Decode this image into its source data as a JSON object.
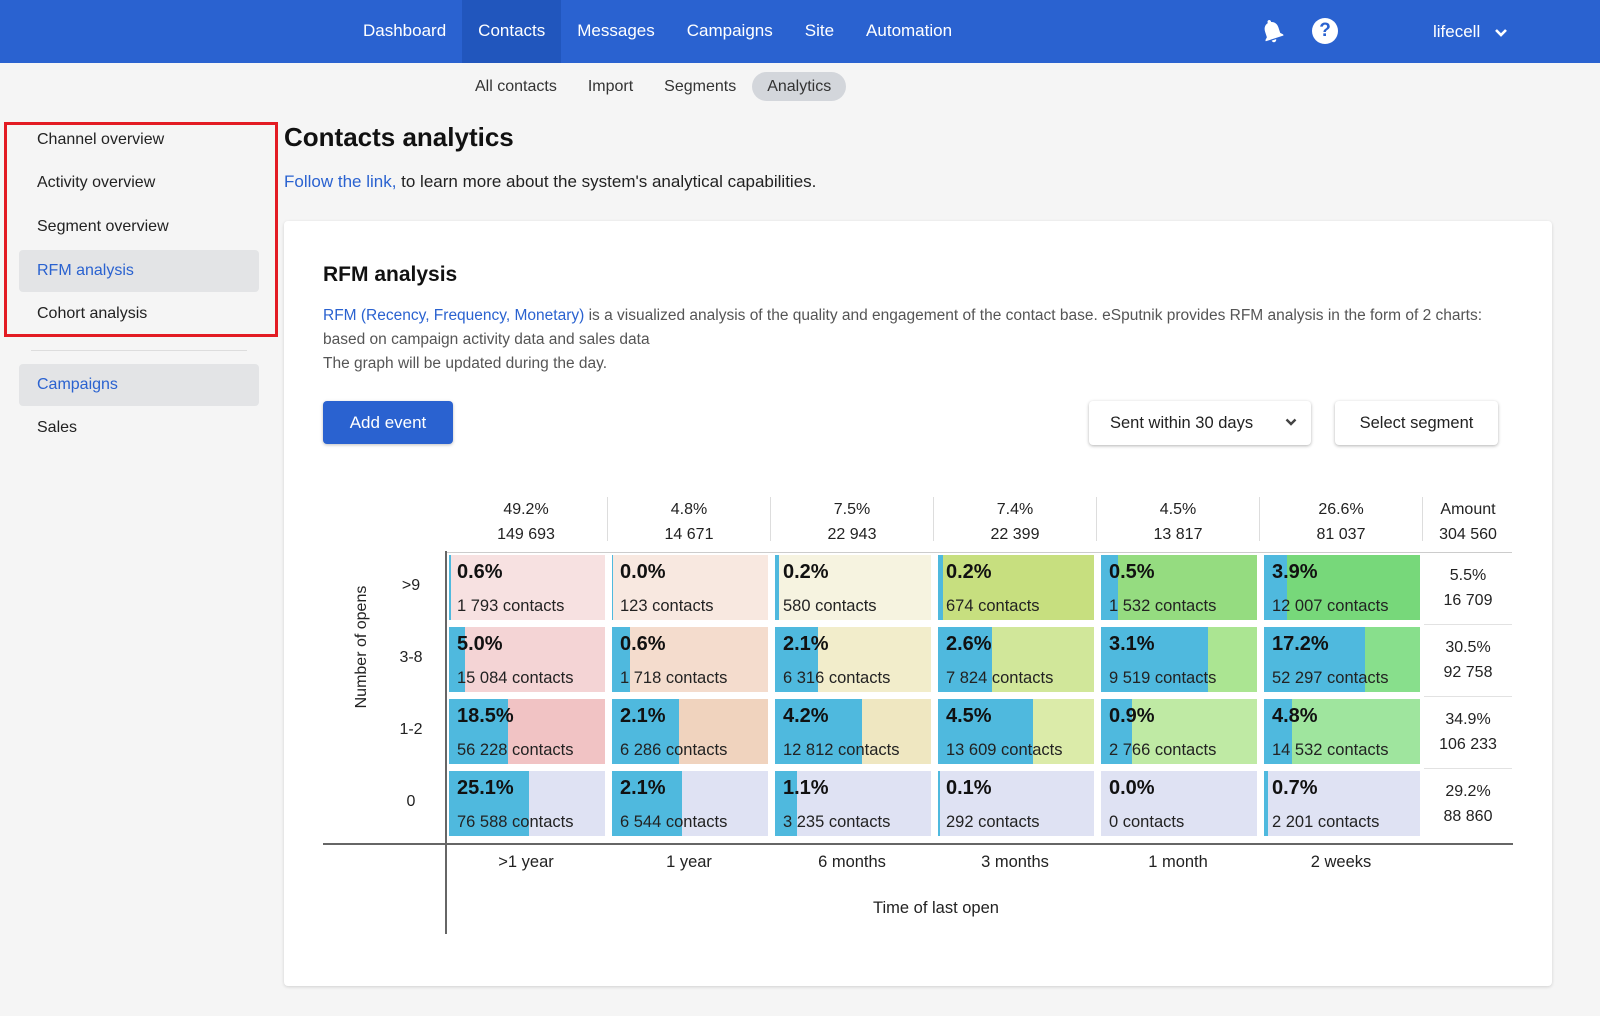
{
  "topnav": {
    "items": [
      {
        "label": "Dashboard",
        "active": false
      },
      {
        "label": "Contacts",
        "active": true
      },
      {
        "label": "Messages",
        "active": false
      },
      {
        "label": "Campaigns",
        "active": false
      },
      {
        "label": "Site",
        "active": false
      },
      {
        "label": "Automation",
        "active": false
      }
    ],
    "account": "lifecell",
    "help_symbol": "?",
    "icons": [
      "bell-icon",
      "help-icon",
      "chevron-down-icon"
    ]
  },
  "subtabs": [
    {
      "label": "All contacts",
      "active": false
    },
    {
      "label": "Import",
      "active": false
    },
    {
      "label": "Segments",
      "active": false
    },
    {
      "label": "Analytics",
      "active": true
    }
  ],
  "sidebar": {
    "analytics_items": [
      {
        "label": "Channel overview",
        "active": false
      },
      {
        "label": "Activity overview",
        "active": false
      },
      {
        "label": "Segment overview",
        "active": false
      },
      {
        "label": "RFM analysis",
        "active": true
      },
      {
        "label": "Cohort analysis",
        "active": false
      }
    ],
    "data_items": [
      {
        "label": "Campaigns",
        "active": true
      },
      {
        "label": "Sales",
        "active": false
      }
    ]
  },
  "header": {
    "title": "Contacts analytics",
    "link_text": "Follow the link,",
    "intro_rest": " to learn more about the system's analytical capabilities."
  },
  "rfm": {
    "title": "RFM analysis",
    "desc_link": "RFM (Recency, Frequency, Monetary)",
    "desc_rest": " is a visualized analysis of the quality and engagement of the contact base. eSputnik provides RFM analysis in the form of 2 charts: based on campaign activity data and sales data",
    "desc_note": "The graph will be updated during the day.",
    "add_event_label": "Add event",
    "filter_value": "Sent within 30 days",
    "select_segment_label": "Select segment"
  },
  "chart_data": {
    "type": "heatmap",
    "xlabel": "Time of last open",
    "ylabel": "Number of opens",
    "columns": [
      ">1 year",
      "1 year",
      "6 months",
      "3 months",
      "1 month",
      "2 weeks"
    ],
    "column_totals": [
      {
        "pct": "49.2%",
        "count": "149 693"
      },
      {
        "pct": "4.8%",
        "count": "14 671"
      },
      {
        "pct": "7.5%",
        "count": "22 943"
      },
      {
        "pct": "7.4%",
        "count": "22 399"
      },
      {
        "pct": "4.5%",
        "count": "13 817"
      },
      {
        "pct": "26.6%",
        "count": "81 037"
      }
    ],
    "amount_header": "Amount",
    "amount_total": "304 560",
    "rows": [
      {
        "label": ">9",
        "total": {
          "pct": "5.5%",
          "count": "16 709"
        },
        "cells": [
          {
            "pct": "0.6%",
            "contacts": "1 793 contacts",
            "share": 0.012,
            "color": "#f7e1e1"
          },
          {
            "pct": "0.0%",
            "contacts": "123 contacts",
            "share": 0.008,
            "color": "#f8e8e0"
          },
          {
            "pct": "0.2%",
            "contacts": "580 contacts",
            "share": 0.025,
            "color": "#f6f3e0"
          },
          {
            "pct": "0.2%",
            "contacts": "674 contacts",
            "share": 0.03,
            "color": "#c7df7f"
          },
          {
            "pct": "0.5%",
            "contacts": "1 532 contacts",
            "share": 0.11,
            "color": "#95dc80"
          },
          {
            "pct": "3.9%",
            "contacts": "12 007 contacts",
            "share": 0.148,
            "color": "#77d87a"
          }
        ]
      },
      {
        "label": "3-8",
        "total": {
          "pct": "30.5%",
          "count": "92 758"
        },
        "cells": [
          {
            "pct": "5.0%",
            "contacts": "15 084 contacts",
            "share": 0.1,
            "color": "#f4d4d5"
          },
          {
            "pct": "0.6%",
            "contacts": "1 718 contacts",
            "share": 0.117,
            "color": "#f4dccd"
          },
          {
            "pct": "2.1%",
            "contacts": "6 316 contacts",
            "share": 0.275,
            "color": "#f2edcb"
          },
          {
            "pct": "2.6%",
            "contacts": "7 824 contacts",
            "share": 0.349,
            "color": "#d1e79a"
          },
          {
            "pct": "3.1%",
            "contacts": "9 519 contacts",
            "share": 0.689,
            "color": "#abe592"
          },
          {
            "pct": "17.2%",
            "contacts": "52 297 contacts",
            "share": 0.645,
            "color": "#88df8c"
          }
        ]
      },
      {
        "label": "1-2",
        "total": {
          "pct": "34.9%",
          "count": "106 233"
        },
        "cells": [
          {
            "pct": "18.5%",
            "contacts": "56 228 contacts",
            "share": 0.376,
            "color": "#f1c3c4"
          },
          {
            "pct": "2.1%",
            "contacts": "6 286 contacts",
            "share": 0.428,
            "color": "#f0d3be"
          },
          {
            "pct": "4.2%",
            "contacts": "12 812 contacts",
            "share": 0.558,
            "color": "#efe7c1"
          },
          {
            "pct": "4.5%",
            "contacts": "13 609 contacts",
            "share": 0.608,
            "color": "#dbeba9"
          },
          {
            "pct": "0.9%",
            "contacts": "2 766 contacts",
            "share": 0.2,
            "color": "#bfeaa4"
          },
          {
            "pct": "4.8%",
            "contacts": "14 532 contacts",
            "share": 0.179,
            "color": "#9fe59e"
          }
        ]
      },
      {
        "label": "0",
        "total": {
          "pct": "29.2%",
          "count": "88 860"
        },
        "cells": [
          {
            "pct": "25.1%",
            "contacts": "76 588 contacts",
            "share": 0.512,
            "color": "#dfe2f3"
          },
          {
            "pct": "2.1%",
            "contacts": "6 544 contacts",
            "share": 0.446,
            "color": "#dfe2f3"
          },
          {
            "pct": "1.1%",
            "contacts": "3 235 contacts",
            "share": 0.141,
            "color": "#dfe2f3"
          },
          {
            "pct": "0.1%",
            "contacts": "292 contacts",
            "share": 0.013,
            "color": "#dfe2f3"
          },
          {
            "pct": "0.0%",
            "contacts": "0 contacts",
            "share": 0.0,
            "color": "#dfe2f3"
          },
          {
            "pct": "0.7%",
            "contacts": "2 201 contacts",
            "share": 0.027,
            "color": "#dfe2f3"
          }
        ]
      }
    ],
    "accent_bar_color": "#4fb9de"
  }
}
